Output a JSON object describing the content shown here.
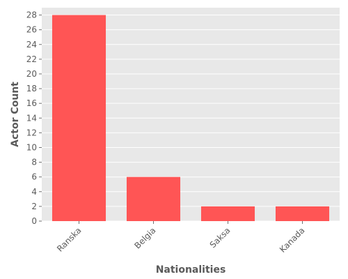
{
  "chart_data": {
    "type": "bar",
    "title": "",
    "categories": [
      "Ranska",
      "Belgia",
      "Saksa",
      "Kanada"
    ],
    "values": [
      28,
      6,
      2,
      2
    ],
    "xlabel": "Nationalities",
    "ylabel": "Actor Count",
    "ylim": [
      0,
      29
    ],
    "yticks": [
      0,
      2,
      4,
      6,
      8,
      10,
      12,
      14,
      16,
      18,
      20,
      22,
      24,
      26,
      28
    ],
    "grid": true,
    "legend": false,
    "colors": {
      "bar": "#ff5555",
      "plot_background": "#e8e8e8",
      "grid": "#ffffff",
      "text": "#5a5a5a"
    }
  }
}
